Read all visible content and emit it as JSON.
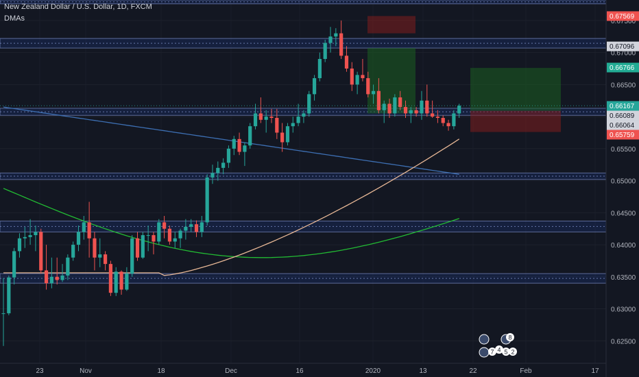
{
  "header": {
    "symbol_line": "New Zealand Dollar / U.S. Dollar, 1D, FXCM",
    "indicator": "DMAs"
  },
  "colors": {
    "background": "#131722",
    "up": "#26a69a",
    "down": "#ef5350",
    "zone_fill": "#1e3a8a",
    "zone_border": "#7b8cc4",
    "sma20": "#e8b896",
    "sma50": "#22bb33",
    "sma200": "#3d6fb3",
    "tp_fill": "#1b5e20",
    "sl_fill": "#7f1d1d"
  },
  "chart_data": {
    "type": "candlestick",
    "symbol": "New Zealand Dollar / U.S. Dollar, 1D, FXCM",
    "ylim": [
      0.6215,
      0.6782
    ],
    "y_ticks": [
      "0.67500",
      "0.67000",
      "0.66500",
      "0.66000",
      "0.65500",
      "0.65000",
      "0.64500",
      "0.64000",
      "0.63500",
      "0.63000",
      "0.62500"
    ],
    "x_ticks": [
      "23",
      "Nov",
      "18",
      "Dec",
      "16",
      "2020",
      "13",
      "22",
      "Feb",
      "17"
    ],
    "candles": [
      [
        0.6293,
        0.6348,
        0.6242,
        0.6293
      ],
      [
        0.6293,
        0.6352,
        0.629,
        0.6349
      ],
      [
        0.6349,
        0.6395,
        0.6338,
        0.639
      ],
      [
        0.639,
        0.6418,
        0.638,
        0.641
      ],
      [
        0.641,
        0.6428,
        0.6395,
        0.6412
      ],
      [
        0.6412,
        0.644,
        0.64,
        0.6415
      ],
      [
        0.6415,
        0.643,
        0.639,
        0.642
      ],
      [
        0.642,
        0.6425,
        0.6355,
        0.636
      ],
      [
        0.636,
        0.64,
        0.633,
        0.634
      ],
      [
        0.634,
        0.638,
        0.6332,
        0.635
      ],
      [
        0.635,
        0.638,
        0.6338,
        0.6345
      ],
      [
        0.6345,
        0.637,
        0.6342,
        0.6352
      ],
      [
        0.6352,
        0.6385,
        0.6345,
        0.638
      ],
      [
        0.638,
        0.6405,
        0.6375,
        0.64
      ],
      [
        0.64,
        0.643,
        0.639,
        0.642
      ],
      [
        0.642,
        0.6445,
        0.6408,
        0.6435
      ],
      [
        0.6435,
        0.6467,
        0.638,
        0.641
      ],
      [
        0.641,
        0.642,
        0.636,
        0.638
      ],
      [
        0.638,
        0.641,
        0.6365,
        0.6385
      ],
      [
        0.6385,
        0.639,
        0.636,
        0.637
      ],
      [
        0.637,
        0.6375,
        0.632,
        0.6325
      ],
      [
        0.6325,
        0.6365,
        0.632,
        0.6358
      ],
      [
        0.6358,
        0.636,
        0.6322,
        0.633
      ],
      [
        0.633,
        0.6365,
        0.6328,
        0.6355
      ],
      [
        0.6355,
        0.6415,
        0.635,
        0.641
      ],
      [
        0.641,
        0.642,
        0.6375,
        0.638
      ],
      [
        0.638,
        0.642,
        0.6378,
        0.6415
      ],
      [
        0.6415,
        0.643,
        0.639,
        0.6415
      ],
      [
        0.6415,
        0.642,
        0.6385,
        0.6405
      ],
      [
        0.6405,
        0.644,
        0.64,
        0.6435
      ],
      [
        0.6435,
        0.6445,
        0.641,
        0.6425
      ],
      [
        0.6425,
        0.643,
        0.64,
        0.6405
      ],
      [
        0.6405,
        0.642,
        0.6395,
        0.641
      ],
      [
        0.641,
        0.6425,
        0.6395,
        0.6422
      ],
      [
        0.6422,
        0.644,
        0.6408,
        0.6428
      ],
      [
        0.6428,
        0.644,
        0.642,
        0.6432
      ],
      [
        0.6432,
        0.6438,
        0.6412,
        0.642
      ],
      [
        0.642,
        0.6445,
        0.6412,
        0.6435
      ],
      [
        0.6435,
        0.651,
        0.643,
        0.6505
      ],
      [
        0.6505,
        0.6525,
        0.6495,
        0.6512
      ],
      [
        0.6512,
        0.653,
        0.65,
        0.652
      ],
      [
        0.652,
        0.6535,
        0.651,
        0.6528
      ],
      [
        0.6528,
        0.6555,
        0.652,
        0.655
      ],
      [
        0.655,
        0.657,
        0.654,
        0.6565
      ],
      [
        0.6565,
        0.6575,
        0.654,
        0.6545
      ],
      [
        0.6545,
        0.656,
        0.6523,
        0.6555
      ],
      [
        0.6555,
        0.659,
        0.655,
        0.6585
      ],
      [
        0.6585,
        0.662,
        0.658,
        0.6605
      ],
      [
        0.6605,
        0.663,
        0.659,
        0.6595
      ],
      [
        0.6595,
        0.661,
        0.6575,
        0.66
      ],
      [
        0.66,
        0.6612,
        0.659,
        0.6598
      ],
      [
        0.6598,
        0.6612,
        0.6565,
        0.6575
      ],
      [
        0.6575,
        0.659,
        0.6545,
        0.656
      ],
      [
        0.656,
        0.659,
        0.6555,
        0.6585
      ],
      [
        0.6585,
        0.66,
        0.6575,
        0.659
      ],
      [
        0.659,
        0.662,
        0.6585,
        0.66
      ],
      [
        0.66,
        0.661,
        0.659,
        0.6605
      ],
      [
        0.6605,
        0.664,
        0.66,
        0.6635
      ],
      [
        0.6635,
        0.6665,
        0.6625,
        0.666
      ],
      [
        0.666,
        0.67,
        0.6655,
        0.669
      ],
      [
        0.669,
        0.672,
        0.6685,
        0.6715
      ],
      [
        0.6715,
        0.674,
        0.67,
        0.6725
      ],
      [
        0.6725,
        0.6738,
        0.671,
        0.673
      ],
      [
        0.673,
        0.675,
        0.669,
        0.6695
      ],
      [
        0.6695,
        0.671,
        0.667,
        0.6675
      ],
      [
        0.6675,
        0.6685,
        0.664,
        0.665
      ],
      [
        0.665,
        0.667,
        0.6635,
        0.6665
      ],
      [
        0.6665,
        0.669,
        0.6655,
        0.666
      ],
      [
        0.666,
        0.667,
        0.663,
        0.6635
      ],
      [
        0.6635,
        0.665,
        0.662,
        0.664
      ],
      [
        0.664,
        0.666,
        0.6605,
        0.661
      ],
      [
        0.661,
        0.6625,
        0.659,
        0.662
      ],
      [
        0.662,
        0.6628,
        0.6598,
        0.6605
      ],
      [
        0.6605,
        0.6635,
        0.66,
        0.663
      ],
      [
        0.663,
        0.664,
        0.661,
        0.6615
      ],
      [
        0.6615,
        0.6625,
        0.6598,
        0.6605
      ],
      [
        0.6605,
        0.6615,
        0.659,
        0.661
      ],
      [
        0.661,
        0.6615,
        0.66,
        0.6605
      ],
      [
        0.6605,
        0.664,
        0.6595,
        0.6625
      ],
      [
        0.6625,
        0.665,
        0.66,
        0.6605
      ],
      [
        0.6605,
        0.6625,
        0.6598,
        0.66
      ],
      [
        0.66,
        0.661,
        0.659,
        0.6598
      ],
      [
        0.6598,
        0.6602,
        0.6585,
        0.659
      ],
      [
        0.659,
        0.6595,
        0.6578,
        0.6585
      ],
      [
        0.6585,
        0.661,
        0.658,
        0.6605
      ],
      [
        0.6605,
        0.662,
        0.6598,
        0.6617
      ]
    ],
    "sma20_endpoints": {
      "start": 0.6352,
      "end": 0.6565
    },
    "sma50_endpoints": {
      "start": 0.6488,
      "end": 0.6455
    },
    "sma200_endpoints": {
      "start": 0.6615,
      "end": 0.651
    },
    "horizontal_zones": [
      [
        0.6776,
        0.6782
      ],
      [
        0.6707,
        0.6722
      ],
      [
        0.6602,
        0.6613
      ],
      [
        0.6502,
        0.6512
      ],
      [
        0.642,
        0.6437
      ],
      [
        0.634,
        0.6355
      ]
    ],
    "positions": [
      {
        "type": "short",
        "entry": 0.673,
        "target": 0.6605,
        "stop": 0.6757
      },
      {
        "type": "long",
        "entry": 0.6609,
        "target": 0.6676,
        "stop": 0.6576
      }
    ],
    "price_labels": [
      {
        "value": "0.67569",
        "price": 0.67569,
        "bg": "#ef5350",
        "fg": "#ffffff"
      },
      {
        "value": "0.67096",
        "price": 0.67096,
        "bg": "#d1d4dc",
        "fg": "#131722"
      },
      {
        "value": "0.66766",
        "price": 0.66766,
        "bg": "#22ab94",
        "fg": "#ffffff"
      },
      {
        "value": "0.66167",
        "price": 0.66167,
        "bg": "#26a69a",
        "fg": "#ffffff"
      },
      {
        "value": "0.66089",
        "price": 0.66089,
        "bg": "#d1d4dc",
        "fg": "#131722"
      },
      {
        "value": "0.66064",
        "price": 0.66064,
        "bg": "#d1d4dc",
        "fg": "#131722"
      },
      {
        "value": "0.65759",
        "price": 0.65759,
        "bg": "#ef5350",
        "fg": "#ffffff"
      }
    ],
    "events": [
      "7",
      "4",
      "5",
      "2",
      "8"
    ]
  }
}
